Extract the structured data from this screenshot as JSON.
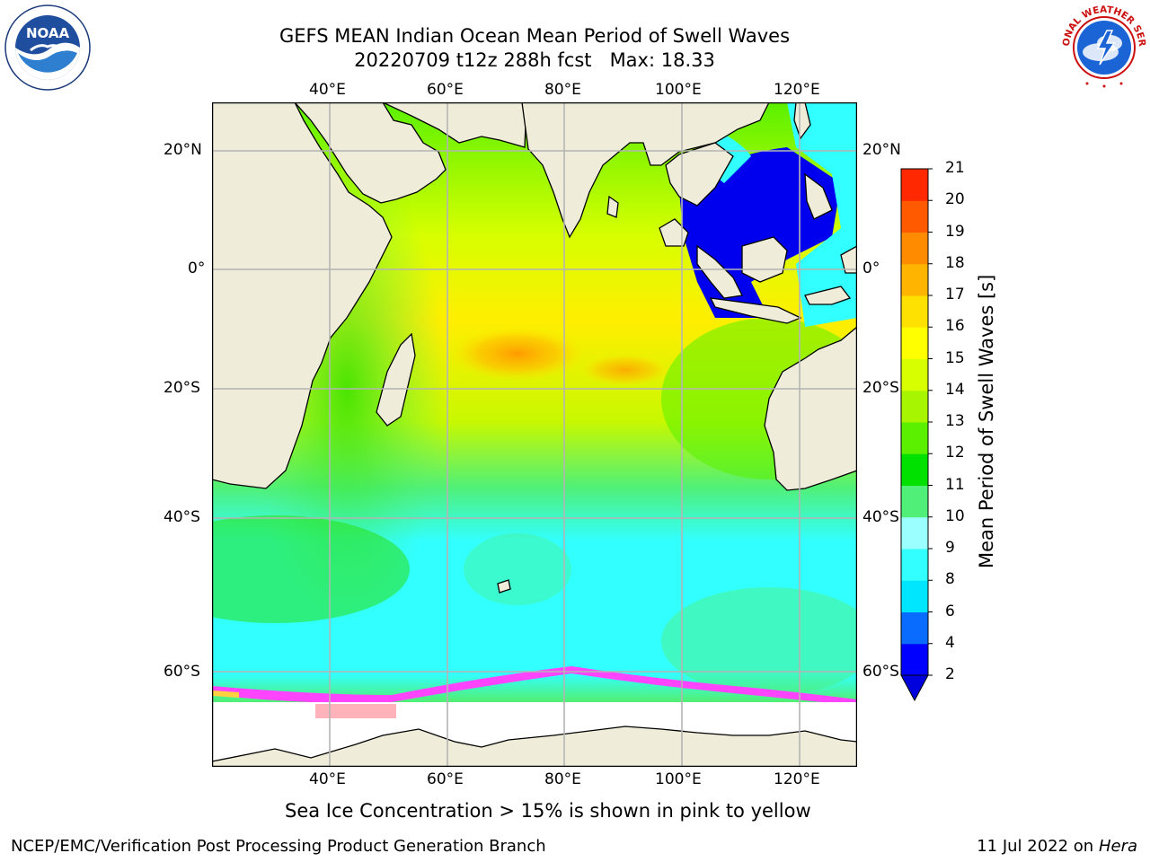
{
  "title": {
    "line1": "GEFS MEAN Indian Ocean Mean Period of Swell Waves",
    "line2": "20220709 t12z 288h fcst   Max: 18.33"
  },
  "logos": {
    "left": {
      "text": "NOAA",
      "ring_text": "NATIONAL OCEANIC AND ATMOSPHERIC ADMINISTRATION · U.S. DEPARTMENT OF COMMERCE"
    },
    "right": {
      "ring_text": "NATIONAL WEATHER SERVICE"
    }
  },
  "map": {
    "lon_labels": [
      "40°E",
      "60°E",
      "80°E",
      "100°E",
      "120°E"
    ],
    "lat_labels": [
      "20°N",
      "0°",
      "20°S",
      "40°S",
      "60°S"
    ],
    "land_color": "#efedd9",
    "grid_color": "#b4b4b4"
  },
  "colorbar": {
    "label": "Mean Period of Swell Waves [s]",
    "ticks": [
      "2",
      "4",
      "6",
      "8",
      "9",
      "10",
      "11",
      "12",
      "13",
      "14",
      "15",
      "16",
      "17",
      "18",
      "19",
      "20",
      "21"
    ],
    "colors": [
      "#0000ff",
      "#0a6cff",
      "#00e6ff",
      "#32ffff",
      "#9bffff",
      "#50f078",
      "#00e100",
      "#5af000",
      "#a8f500",
      "#d7ff00",
      "#ffff00",
      "#ffe100",
      "#ffb400",
      "#ff8c00",
      "#ff5a00",
      "#ff2800",
      "#ff0000"
    ],
    "extend_color": "#0000dd"
  },
  "caption": "Sea Ice Concentration > 15% is shown in pink to yellow",
  "footer": {
    "left": "NCEP/EMC/Verification Post Processing Product Generation Branch",
    "right_date": "11 Jul 2022 on ",
    "right_host": "Hera"
  }
}
